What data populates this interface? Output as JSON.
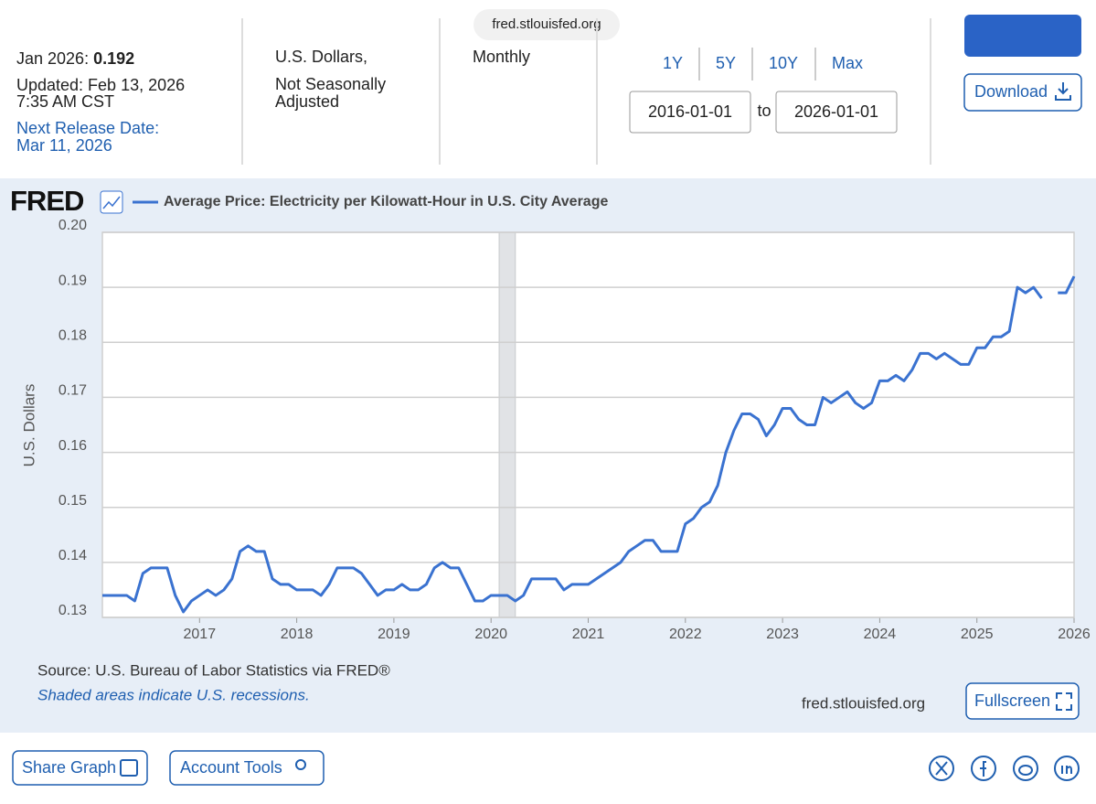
{
  "browser": {
    "url": "fred.stlouisfed.org"
  },
  "header": {
    "latest_label": "Jan 2026:",
    "latest_value": 0.192,
    "updated": [
      "Updated: Feb 13, 2026",
      "7:35 AM CST"
    ],
    "next_release": [
      "Next Release Date:",
      "Mar 11, 2026"
    ],
    "units": [
      "U.S. Dollars,",
      "Not Seasonally",
      "Adjusted"
    ],
    "frequency": "Monthly",
    "ranges": [
      "1Y",
      "5Y",
      "10Y",
      "Max"
    ],
    "start_date": "2016-01-01",
    "to": "to",
    "end_date": "2026-01-01",
    "download": "Download"
  },
  "chart_data": {
    "type": "line",
    "logo": "FRED",
    "ylabel": "U.S. Dollars",
    "series": [
      {
        "name": "Average Price: Electricity per Kilowatt-Hour in U.S. City Average",
        "color": "#3a72d0",
        "values": [
          0.134,
          0.134,
          0.134,
          0.134,
          0.133,
          0.138,
          0.139,
          0.139,
          0.139,
          0.134,
          0.131,
          0.133,
          0.134,
          0.135,
          0.134,
          0.135,
          0.137,
          0.142,
          0.143,
          0.142,
          0.142,
          0.137,
          0.136,
          0.136,
          0.135,
          0.135,
          0.135,
          0.134,
          0.136,
          0.139,
          0.139,
          0.139,
          0.138,
          0.136,
          0.134,
          0.135,
          0.135,
          0.136,
          0.135,
          0.135,
          0.136,
          0.139,
          0.14,
          0.139,
          0.139,
          0.136,
          0.133,
          0.133,
          0.134,
          0.134,
          0.134,
          0.133,
          0.134,
          0.137,
          0.137,
          0.137,
          0.137,
          0.135,
          0.136,
          0.136,
          0.136,
          0.137,
          0.138,
          0.139,
          0.14,
          0.142,
          0.143,
          0.144,
          0.144,
          0.142,
          0.142,
          0.142,
          0.147,
          0.148,
          0.15,
          0.151,
          0.154,
          0.16,
          0.164,
          0.167,
          0.167,
          0.166,
          0.163,
          0.165,
          0.168,
          0.168,
          0.166,
          0.165,
          0.165,
          0.17,
          0.169,
          0.17,
          0.171,
          0.169,
          0.168,
          0.169,
          0.173,
          0.173,
          0.174,
          0.173,
          0.175,
          0.178,
          0.178,
          0.177,
          0.178,
          0.177,
          0.176,
          0.176,
          0.179,
          0.179,
          0.181,
          0.181,
          0.182,
          0.19,
          0.189,
          0.19,
          0.188,
          null,
          0.189,
          0.189,
          0.192
        ]
      }
    ],
    "x": [
      "2016-01",
      "2016-02",
      "2016-03",
      "2016-04",
      "2016-05",
      "2016-06",
      "2016-07",
      "2016-08",
      "2016-09",
      "2016-10",
      "2016-11",
      "2016-12",
      "2017-01",
      "2017-02",
      "2017-03",
      "2017-04",
      "2017-05",
      "2017-06",
      "2017-07",
      "2017-08",
      "2017-09",
      "2017-10",
      "2017-11",
      "2017-12",
      "2018-01",
      "2018-02",
      "2018-03",
      "2018-04",
      "2018-05",
      "2018-06",
      "2018-07",
      "2018-08",
      "2018-09",
      "2018-10",
      "2018-11",
      "2018-12",
      "2019-01",
      "2019-02",
      "2019-03",
      "2019-04",
      "2019-05",
      "2019-06",
      "2019-07",
      "2019-08",
      "2019-09",
      "2019-10",
      "2019-11",
      "2019-12",
      "2020-01",
      "2020-02",
      "2020-03",
      "2020-04",
      "2020-05",
      "2020-06",
      "2020-07",
      "2020-08",
      "2020-09",
      "2020-10",
      "2020-11",
      "2020-12",
      "2021-01",
      "2021-02",
      "2021-03",
      "2021-04",
      "2021-05",
      "2021-06",
      "2021-07",
      "2021-08",
      "2021-09",
      "2021-10",
      "2021-11",
      "2021-12",
      "2022-01",
      "2022-02",
      "2022-03",
      "2022-04",
      "2022-05",
      "2022-06",
      "2022-07",
      "2022-08",
      "2022-09",
      "2022-10",
      "2022-11",
      "2022-12",
      "2023-01",
      "2023-02",
      "2023-03",
      "2023-04",
      "2023-05",
      "2023-06",
      "2023-07",
      "2023-08",
      "2023-09",
      "2023-10",
      "2023-11",
      "2023-12",
      "2024-01",
      "2024-02",
      "2024-03",
      "2024-04",
      "2024-05",
      "2024-06",
      "2024-07",
      "2024-08",
      "2024-09",
      "2024-10",
      "2024-11",
      "2024-12",
      "2025-01",
      "2025-02",
      "2025-03",
      "2025-04",
      "2025-05",
      "2025-06",
      "2025-07",
      "2025-08",
      "2025-09",
      "2025-10",
      "2025-11",
      "2025-12",
      "2026-01"
    ],
    "xlim": [
      "2016-01-01",
      "2026-01-01"
    ],
    "xticks": [
      2017,
      2018,
      2019,
      2020,
      2021,
      2022,
      2023,
      2024,
      2025,
      2026
    ],
    "ylim": [
      0.13,
      0.2
    ],
    "yticks": [
      0.13,
      0.14,
      0.15,
      0.16,
      0.17,
      0.18,
      0.19,
      {
        "value": 0.2,
        "label": "0.20"
      }
    ],
    "grid": true,
    "recessions": [
      [
        "2020-02",
        "2020-04"
      ]
    ],
    "source": "Source: U.S. Bureau of Labor Statistics via FRED®",
    "note": "Shaded areas indicate U.S. recessions.",
    "site": "fred.stlouisfed.org",
    "fullscreen": "Fullscreen"
  },
  "footer": {
    "share": "Share Graph",
    "account": "Account Tools"
  }
}
